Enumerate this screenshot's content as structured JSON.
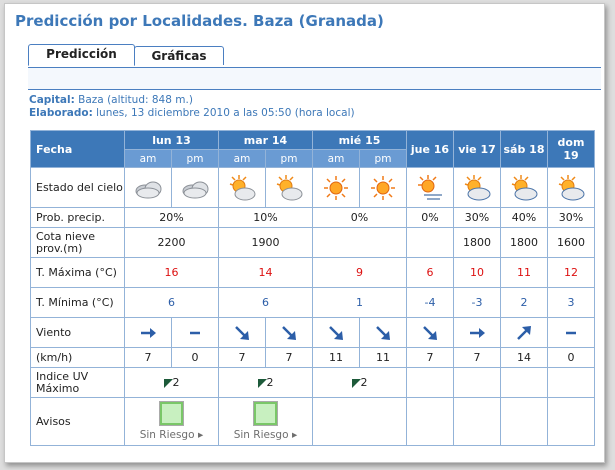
{
  "title": "Predicción por Localidades. Baza (Granada)",
  "tabs": [
    {
      "label": "Predicción",
      "active": true
    },
    {
      "label": "Gráficas",
      "active": false
    }
  ],
  "capital": {
    "label": "Capital:",
    "value": "Baza (altitud: 848 m.)"
  },
  "elaborado": {
    "label": "Elaborado:",
    "value": "lunes, 13 diciembre 2010 a las 05:50 (hora local)"
  },
  "table": {
    "fecha_label": "Fecha",
    "days": [
      {
        "label": "lun 13",
        "split": true
      },
      {
        "label": "mar 14",
        "split": true
      },
      {
        "label": "mié 15",
        "split": true
      },
      {
        "label": "jue 16",
        "split": false
      },
      {
        "label": "vie 17",
        "split": false
      },
      {
        "label": "sáb 18",
        "split": false
      },
      {
        "label": "dom 19",
        "split": false
      }
    ],
    "am": "am",
    "pm": "pm",
    "row_labels": {
      "sky": "Estado del cielo",
      "precip": "Prob. precip.",
      "snow": "Cota nieve prov.(m)",
      "tmax": "T. Máxima (°C)",
      "tmin": "T. Mínima (°C)",
      "wind": "Viento",
      "kmh": "(km/h)",
      "uv": "Indice UV Máximo",
      "avisos": "Avisos"
    },
    "sky_icons": [
      "cloudy-icon",
      "cloudy-icon",
      "sun-cloud-icon",
      "sun-cloud-icon",
      "sun-icon",
      "sun-icon",
      "sun-haze-icon",
      "sun-cloud-icon",
      "sun-cloud-icon",
      "sun-cloud-icon"
    ],
    "precip": [
      "20%",
      "10%",
      "0%",
      "0%",
      "30%",
      "40%",
      "30%"
    ],
    "snow": [
      "2200",
      "1900",
      "",
      "",
      "1800",
      "1800",
      "1600"
    ],
    "tmax": [
      "16",
      "14",
      "9",
      "6",
      "10",
      "11",
      "12"
    ],
    "tmin": [
      "6",
      "6",
      "1",
      "-4",
      "-3",
      "2",
      "3"
    ],
    "wind_dirs": [
      "arrow-east-icon",
      "calm-dash-icon",
      "arrow-southeast-icon",
      "arrow-southeast-icon",
      "arrow-southeast-icon",
      "arrow-southeast-icon",
      "arrow-southeast-icon",
      "arrow-east-icon",
      "arrow-northeast-icon",
      "calm-dash-icon"
    ],
    "kmh": [
      "7",
      "0",
      "7",
      "7",
      "11",
      "11",
      "7",
      "7",
      "14",
      "0"
    ],
    "uv": [
      "2",
      "2",
      "2",
      "",
      "",
      "",
      ""
    ],
    "avisos": [
      "Sin Riesgo",
      "Sin Riesgo",
      "",
      "",
      "",
      "",
      ""
    ]
  },
  "colors": {
    "accent": "#3d78b8",
    "header_sub": "#6a9bd3",
    "border": "#93b3d8",
    "tmax": "#dd1111",
    "tmin": "#2c5ea8"
  }
}
